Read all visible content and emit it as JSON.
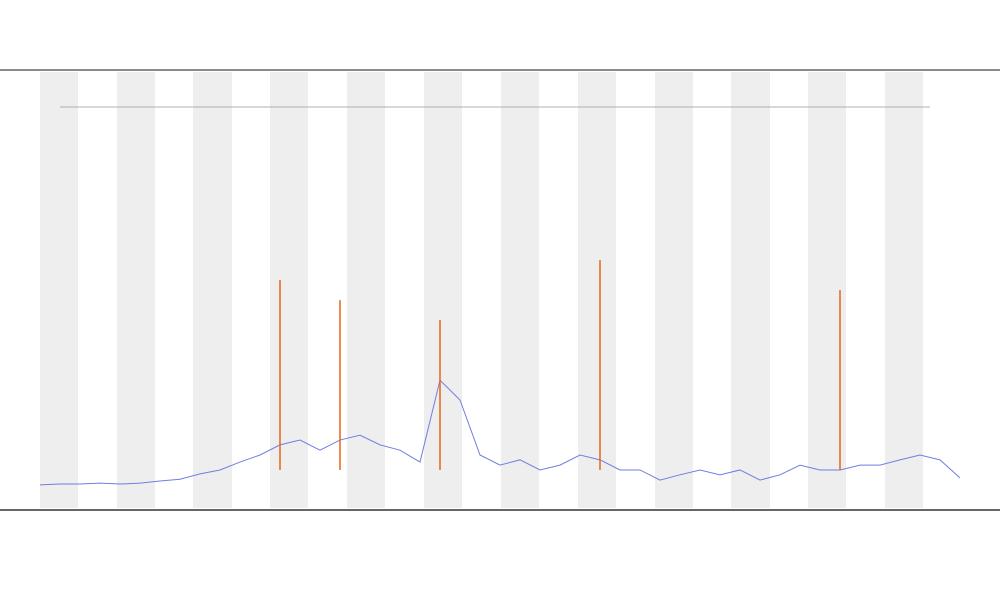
{
  "chart_data": {
    "type": "line",
    "ylim": [
      0,
      100
    ],
    "series": [
      {
        "color": "#6f7fe0",
        "values": [
          5.7,
          5.9,
          5.9,
          6.1,
          5.9,
          6.1,
          6.6,
          7.0,
          8.2,
          9.1,
          10.9,
          12.5,
          14.8,
          15.9,
          13.6,
          15.9,
          17.0,
          14.8,
          13.6,
          10.9,
          29.5,
          25.0,
          12.5,
          10.2,
          11.4,
          9.1,
          10.2,
          12.5,
          11.4,
          9.1,
          9.1,
          6.8,
          8.0,
          9.1,
          8.0,
          9.1,
          6.8,
          8.0,
          10.2,
          9.1,
          9.1,
          10.2,
          10.2,
          11.4,
          12.5,
          11.4,
          7.3
        ]
      },
      {
        "color": "#e8651a",
        "values": [
          null,
          null,
          null,
          null,
          null,
          null,
          null,
          null,
          null,
          null,
          null,
          null,
          52.3,
          null,
          null,
          47.7,
          null,
          null,
          null,
          null,
          43.2,
          null,
          null,
          null,
          null,
          null,
          null,
          null,
          56.8,
          null,
          null,
          null,
          null,
          null,
          null,
          null,
          null,
          null,
          null,
          null,
          50.0,
          null,
          null,
          null,
          null,
          null,
          null
        ]
      }
    ]
  }
}
